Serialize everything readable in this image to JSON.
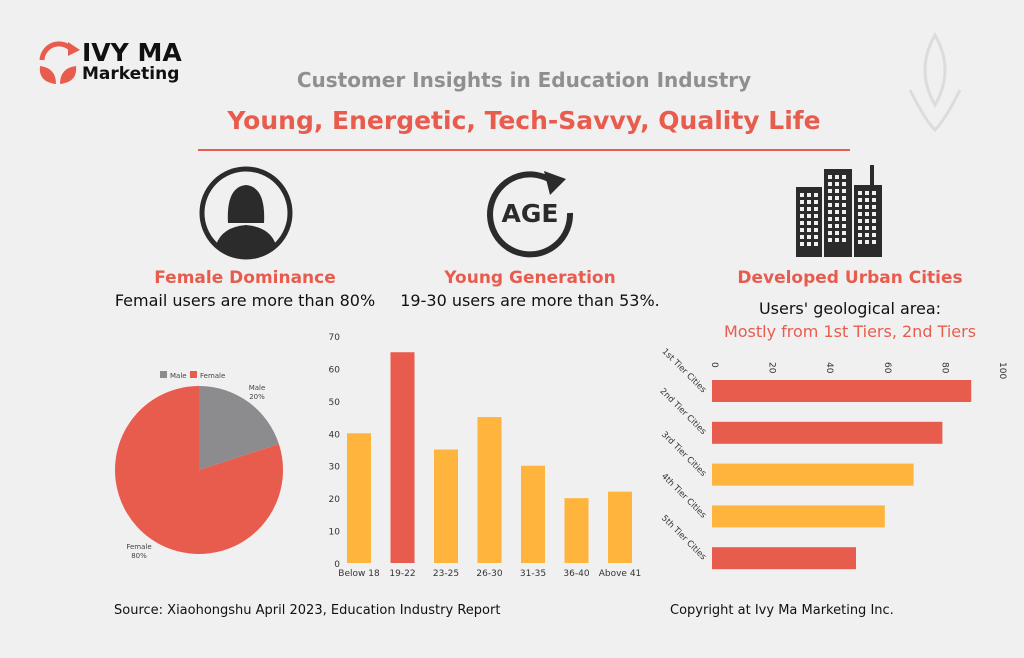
{
  "logo": {
    "line1": "IVY MA",
    "line2": "Marketing"
  },
  "header": {
    "subtitle": "Customer Insights in Education Industry",
    "title": "Young, Energetic, Tech-Savvy, Quality Life"
  },
  "sections": [
    {
      "icon": "female-user-icon",
      "heading": "Female Dominance",
      "text": "Femail users are more than 80%"
    },
    {
      "icon": "age-icon",
      "icon_text": "AGE",
      "heading": "Young Generation",
      "text": "19-30 users are more than 53%."
    },
    {
      "icon": "buildings-icon",
      "heading": "Developed Urban Cities",
      "text": "Users' geological area:",
      "highlight": "Mostly from 1st Tiers, 2nd Tiers"
    }
  ],
  "colors": {
    "red": "#e85c4e",
    "orange": "#feb43d",
    "gray": "#8c8c8f"
  },
  "chart_data": [
    {
      "type": "pie",
      "title": "",
      "legend": [
        "Male",
        "Female"
      ],
      "legend_position": "top",
      "slices": [
        {
          "label": "Male",
          "value": 20,
          "display": "20%"
        },
        {
          "label": "Female",
          "value": 80,
          "display": "80%"
        }
      ]
    },
    {
      "type": "bar",
      "categories": [
        "Below 18",
        "19-22",
        "23-25",
        "26-30",
        "31-35",
        "36-40",
        "Above 41"
      ],
      "values": [
        40,
        65,
        35,
        45,
        30,
        20,
        22
      ],
      "highlight": [
        false,
        true,
        false,
        false,
        false,
        false,
        false
      ],
      "ylim": [
        0,
        70
      ],
      "yticks": [
        0,
        10,
        20,
        30,
        40,
        50,
        60,
        70
      ],
      "xlabel": "",
      "ylabel": ""
    },
    {
      "type": "bar",
      "orientation": "horizontal",
      "categories": [
        "1st Tier Cities",
        "2nd Tier Cities",
        "3rd Tier Cities",
        "4th Tier Cities",
        "5th Tier Cities"
      ],
      "values": [
        90,
        80,
        70,
        60,
        50
      ],
      "colors": [
        "red",
        "red",
        "orange",
        "orange",
        "red"
      ],
      "xlim": [
        0,
        100
      ],
      "xticks": [
        0,
        20,
        40,
        60,
        80,
        100
      ],
      "xaxis_position": "top"
    }
  ],
  "footer": {
    "source": "Source: Xiaohongshu April 2023, Education Industry Report",
    "copyright": "Copyright at Ivy Ma Marketing Inc."
  }
}
